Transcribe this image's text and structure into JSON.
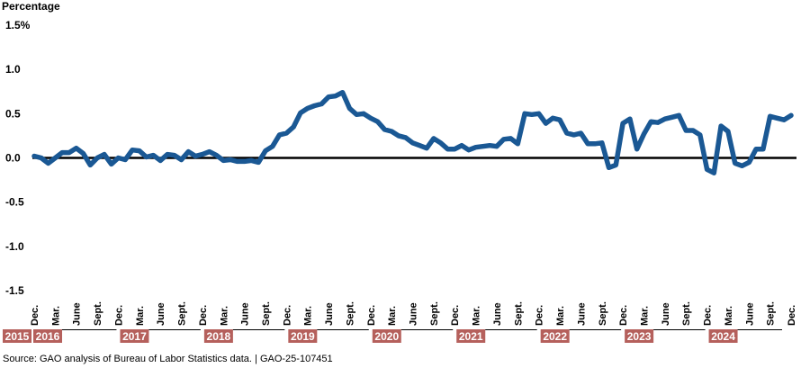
{
  "chart_data": {
    "type": "line",
    "ylabel": "Percentage",
    "y_ticks": [
      "1.5%",
      "1.0",
      "0.5",
      "0.0",
      "-0.5",
      "-1.0",
      "-1.5"
    ],
    "ylim": [
      -1.5,
      1.5
    ],
    "zero_line": true,
    "x_ticks": [
      {
        "label": "Dec.",
        "x": "2015-12"
      },
      {
        "label": "Mar.",
        "x": "2016-03"
      },
      {
        "label": "June",
        "x": "2016-06"
      },
      {
        "label": "Sept.",
        "x": "2016-09"
      },
      {
        "label": "Dec.",
        "x": "2016-12"
      },
      {
        "label": "Mar.",
        "x": "2017-03"
      },
      {
        "label": "June",
        "x": "2017-06"
      },
      {
        "label": "Sept.",
        "x": "2017-09"
      },
      {
        "label": "Dec.",
        "x": "2017-12"
      },
      {
        "label": "Mar.",
        "x": "2018-03"
      },
      {
        "label": "June",
        "x": "2018-06"
      },
      {
        "label": "Sept.",
        "x": "2018-09"
      },
      {
        "label": "Dec.",
        "x": "2018-12"
      },
      {
        "label": "Mar.",
        "x": "2019-03"
      },
      {
        "label": "June",
        "x": "2019-06"
      },
      {
        "label": "Sept.",
        "x": "2019-09"
      },
      {
        "label": "Dec.",
        "x": "2019-12"
      },
      {
        "label": "Mar.",
        "x": "2020-03"
      },
      {
        "label": "June",
        "x": "2020-06"
      },
      {
        "label": "Sept.",
        "x": "2020-09"
      },
      {
        "label": "Dec.",
        "x": "2020-12"
      },
      {
        "label": "Mar.",
        "x": "2021-03"
      },
      {
        "label": "June",
        "x": "2021-06"
      },
      {
        "label": "Sept.",
        "x": "2021-09"
      },
      {
        "label": "Dec.",
        "x": "2021-12"
      },
      {
        "label": "Mar.",
        "x": "2022-03"
      },
      {
        "label": "June",
        "x": "2022-06"
      },
      {
        "label": "Sept.",
        "x": "2022-09"
      },
      {
        "label": "Dec.",
        "x": "2022-12"
      },
      {
        "label": "Mar.",
        "x": "2023-03"
      },
      {
        "label": "June",
        "x": "2023-06"
      },
      {
        "label": "Sept.",
        "x": "2023-09"
      },
      {
        "label": "Dec.",
        "x": "2023-12"
      },
      {
        "label": "Mar.",
        "x": "2024-03"
      },
      {
        "label": "June",
        "x": "2024-06"
      },
      {
        "label": "Sept.",
        "x": "2024-09"
      },
      {
        "label": "Dec.",
        "x": "2024-12"
      }
    ],
    "years": [
      "2015",
      "2016",
      "2017",
      "2018",
      "2019",
      "2020",
      "2021",
      "2022",
      "2023",
      "2024"
    ],
    "year_box_color": "#b5605c",
    "line_color": "#1a5894",
    "series": [
      {
        "x": [
          "2015-12",
          "2016-01",
          "2016-02",
          "2016-03",
          "2016-04",
          "2016-05",
          "2016-06",
          "2016-07",
          "2016-08",
          "2016-09",
          "2016-10",
          "2016-11",
          "2016-12",
          "2017-01",
          "2017-02",
          "2017-03",
          "2017-04",
          "2017-05",
          "2017-06",
          "2017-07",
          "2017-08",
          "2017-09",
          "2017-10",
          "2017-11",
          "2017-12",
          "2018-01",
          "2018-02",
          "2018-03",
          "2018-04",
          "2018-05",
          "2018-06",
          "2018-07",
          "2018-08",
          "2018-09",
          "2018-10",
          "2018-11",
          "2018-12",
          "2019-01",
          "2019-02",
          "2019-03",
          "2019-04",
          "2019-05",
          "2019-06",
          "2019-07",
          "2019-08",
          "2019-09",
          "2019-10",
          "2019-11",
          "2019-12",
          "2020-01",
          "2020-02",
          "2020-03",
          "2020-04",
          "2020-05",
          "2020-06",
          "2020-07",
          "2020-08",
          "2020-09",
          "2020-10",
          "2020-11",
          "2020-12",
          "2021-01",
          "2021-02",
          "2021-03",
          "2021-04",
          "2021-05",
          "2021-06",
          "2021-07",
          "2021-08",
          "2021-09",
          "2021-10",
          "2021-11",
          "2021-12",
          "2022-01",
          "2022-02",
          "2022-03",
          "2022-04",
          "2022-05",
          "2022-06",
          "2022-07",
          "2022-08",
          "2022-09",
          "2022-10",
          "2022-11",
          "2022-12",
          "2023-01",
          "2023-02",
          "2023-03",
          "2023-04",
          "2023-05",
          "2023-06",
          "2023-07",
          "2023-08",
          "2023-09",
          "2023-10",
          "2023-11",
          "2023-12",
          "2024-01",
          "2024-02",
          "2024-03",
          "2024-04",
          "2024-05",
          "2024-06",
          "2024-07",
          "2024-08",
          "2024-09",
          "2024-10",
          "2024-11",
          "2024-12"
        ],
        "values": [
          0.02,
          0.0,
          -0.06,
          0.0,
          0.06,
          0.06,
          0.11,
          0.05,
          -0.08,
          0.0,
          0.04,
          -0.07,
          0.0,
          -0.02,
          0.09,
          0.08,
          0.01,
          0.03,
          -0.03,
          0.04,
          0.03,
          -0.02,
          0.07,
          0.02,
          0.04,
          0.07,
          0.03,
          -0.03,
          -0.02,
          -0.04,
          -0.04,
          -0.03,
          -0.05,
          0.08,
          0.13,
          0.26,
          0.28,
          0.35,
          0.51,
          0.56,
          0.59,
          0.61,
          0.69,
          0.7,
          0.74,
          0.56,
          0.49,
          0.5,
          0.45,
          0.41,
          0.32,
          0.3,
          0.25,
          0.23,
          0.17,
          0.14,
          0.11,
          0.22,
          0.17,
          0.1,
          0.1,
          0.14,
          0.09,
          0.12,
          0.13,
          0.14,
          0.13,
          0.21,
          0.22,
          0.16,
          0.5,
          0.49,
          0.5,
          0.39,
          0.45,
          0.43,
          0.28,
          0.26,
          0.28,
          0.16,
          0.16,
          0.17,
          -0.11,
          -0.08,
          0.39,
          0.44,
          0.1,
          0.27,
          0.41,
          0.4,
          0.44,
          0.46,
          0.48,
          0.31,
          0.31,
          0.26,
          -0.13,
          -0.17,
          0.36,
          0.3,
          -0.06,
          -0.09,
          -0.05,
          0.1,
          0.1,
          0.47,
          0.45,
          0.43,
          0.48
        ]
      }
    ]
  },
  "source": "Source: GAO analysis of Bureau of Labor Statistics data.  |  GAO-25-107451"
}
